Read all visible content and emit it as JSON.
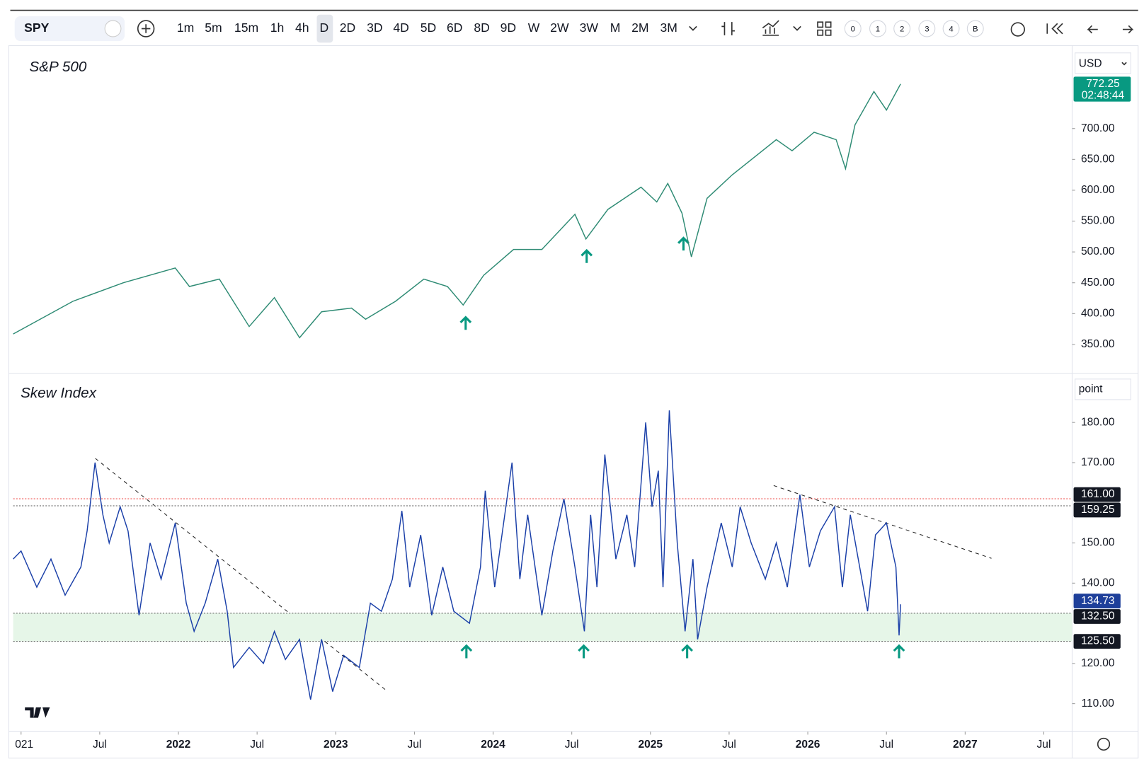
{
  "toolbar": {
    "symbol": "SPY",
    "intervals": [
      "1m",
      "5m",
      "15m",
      "1h",
      "4h",
      "D",
      "2D",
      "3D",
      "4D",
      "5D",
      "6D",
      "8D",
      "9D",
      "W",
      "2W",
      "3W",
      "M",
      "2M",
      "3M"
    ],
    "layouts": [
      "0",
      "1",
      "2",
      "3",
      "4",
      "B"
    ]
  },
  "chart_data": [
    {
      "type": "line",
      "title": "S&P 500",
      "unit": "USD",
      "color": "#2e8b74",
      "x": [
        2020.95,
        2021.33,
        2021.65,
        2021.98,
        2022.07,
        2022.26,
        2022.45,
        2022.61,
        2022.77,
        2022.91,
        2023.1,
        2023.19,
        2023.38,
        2023.56,
        2023.71,
        2023.81,
        2023.94,
        2024.13,
        2024.31,
        2024.52,
        2024.59,
        2024.73,
        2024.94,
        2025.04,
        2025.11,
        2025.2,
        2025.26,
        2025.36,
        2025.52,
        2025.8,
        2025.9,
        2026.04,
        2026.18,
        2026.24,
        2026.3,
        2026.42,
        2026.5,
        2026.59
      ],
      "values": [
        367,
        420,
        450,
        474,
        444,
        456,
        379,
        426,
        361,
        403,
        409,
        391,
        420,
        456,
        444,
        414,
        462,
        504,
        504,
        561,
        521,
        569,
        605,
        581,
        611,
        563,
        492,
        587,
        625,
        682,
        664,
        694,
        682,
        635,
        706,
        760,
        730,
        772.25
      ],
      "last_value": {
        "value": 772.25,
        "label": "772.25",
        "time": "02:48:44",
        "color": "#089981"
      },
      "xlim": [
        2020.95,
        2027.68
      ],
      "ylim": [
        307,
        831
      ],
      "yticks": [
        {
          "value": 700,
          "label": "700.00"
        },
        {
          "value": 650,
          "label": "650.00"
        },
        {
          "value": 600,
          "label": "600.00"
        },
        {
          "value": 550,
          "label": "550.00"
        },
        {
          "value": 500,
          "label": "500.00"
        },
        {
          "value": 450,
          "label": "450.00"
        },
        {
          "value": 400,
          "label": "400.00"
        },
        {
          "value": 350,
          "label": "350.00"
        }
      ]
    },
    {
      "type": "line",
      "title": "Skew Index",
      "unit": "point",
      "color": "#1a3fa8",
      "x": [
        2020.95,
        2021.0,
        2021.1,
        2021.19,
        2021.28,
        2021.38,
        2021.42,
        2021.47,
        2021.52,
        2021.56,
        2021.63,
        2021.68,
        2021.75,
        2021.82,
        2021.89,
        2021.98,
        2022.05,
        2022.1,
        2022.17,
        2022.25,
        2022.31,
        2022.35,
        2022.45,
        2022.54,
        2022.61,
        2022.68,
        2022.77,
        2022.84,
        2022.91,
        2022.98,
        2023.05,
        2023.15,
        2023.22,
        2023.29,
        2023.36,
        2023.42,
        2023.47,
        2023.54,
        2023.61,
        2023.68,
        2023.75,
        2023.85,
        2023.92,
        2023.95,
        2024.01,
        2024.12,
        2024.17,
        2024.22,
        2024.31,
        2024.38,
        2024.45,
        2024.52,
        2024.58,
        2024.62,
        2024.66,
        2024.71,
        2024.78,
        2024.85,
        2024.9,
        2024.97,
        2025.01,
        2025.05,
        2025.08,
        2025.12,
        2025.17,
        2025.22,
        2025.27,
        2025.3,
        2025.36,
        2025.45,
        2025.52,
        2025.57,
        2025.64,
        2025.73,
        2025.8,
        2025.87,
        2025.95,
        2026.01,
        2026.08,
        2026.17,
        2026.22,
        2026.27,
        2026.33,
        2026.38,
        2026.43,
        2026.5,
        2026.56,
        2026.58,
        2026.59
      ],
      "values": [
        146,
        148,
        139,
        146,
        137,
        144,
        153,
        170,
        157,
        150,
        159,
        153,
        132,
        150,
        141,
        155,
        135,
        128,
        135,
        146,
        133,
        119,
        124,
        120,
        128,
        121,
        126,
        111,
        126,
        113,
        122,
        119,
        135,
        133,
        141,
        158,
        139,
        152,
        132,
        144,
        133,
        130,
        144,
        163,
        139,
        170,
        141,
        157,
        132,
        148,
        161,
        144,
        128,
        157,
        139,
        172,
        146,
        157,
        144,
        180,
        159,
        168,
        139,
        183,
        150,
        128,
        146,
        126,
        139,
        155,
        144,
        159,
        150,
        141,
        150,
        139,
        162,
        144,
        153,
        159,
        139,
        157,
        144,
        133,
        152,
        155,
        144,
        127,
        134.73
      ],
      "last_value": {
        "value": 134.73,
        "label": "134.73",
        "color": "#1e3f9a"
      },
      "levels": [
        {
          "value": 161,
          "label": "161.00",
          "color": "#ef5350"
        },
        {
          "value": 159.25,
          "label": "159.25",
          "color": "#555555"
        },
        {
          "value": 132.5,
          "label": "132.50",
          "color": "#555555"
        },
        {
          "value": 125.5,
          "label": "125.50",
          "color": "#555555"
        }
      ],
      "band": [
        125.5,
        132.5
      ],
      "band_color": "#e6f6e8",
      "xlim": [
        2020.95,
        2027.68
      ],
      "ylim": [
        103.2,
        191.9
      ],
      "yticks": [
        {
          "value": 180,
          "label": "180.00"
        },
        {
          "value": 170,
          "label": "170.00"
        },
        {
          "value": 150,
          "label": "150.00"
        },
        {
          "value": 140,
          "label": "140.00"
        },
        {
          "value": 120,
          "label": "120.00"
        },
        {
          "value": 110,
          "label": "110.00"
        }
      ],
      "xticks": [
        {
          "value": 2021,
          "label": "021"
        },
        {
          "value": 2021.5,
          "label": "Jul"
        },
        2022,
        {
          "value": 2022.5,
          "label": "Jul"
        },
        2023,
        {
          "value": 2023.5,
          "label": "Jul"
        },
        2024,
        {
          "value": 2024.5,
          "label": "Jul"
        },
        2025,
        {
          "value": 2025.5,
          "label": "Jul"
        },
        2026,
        {
          "value": 2026.5,
          "label": "Jul"
        },
        2027,
        {
          "value": 2027.5,
          "label": "Jul"
        }
      ]
    }
  ]
}
